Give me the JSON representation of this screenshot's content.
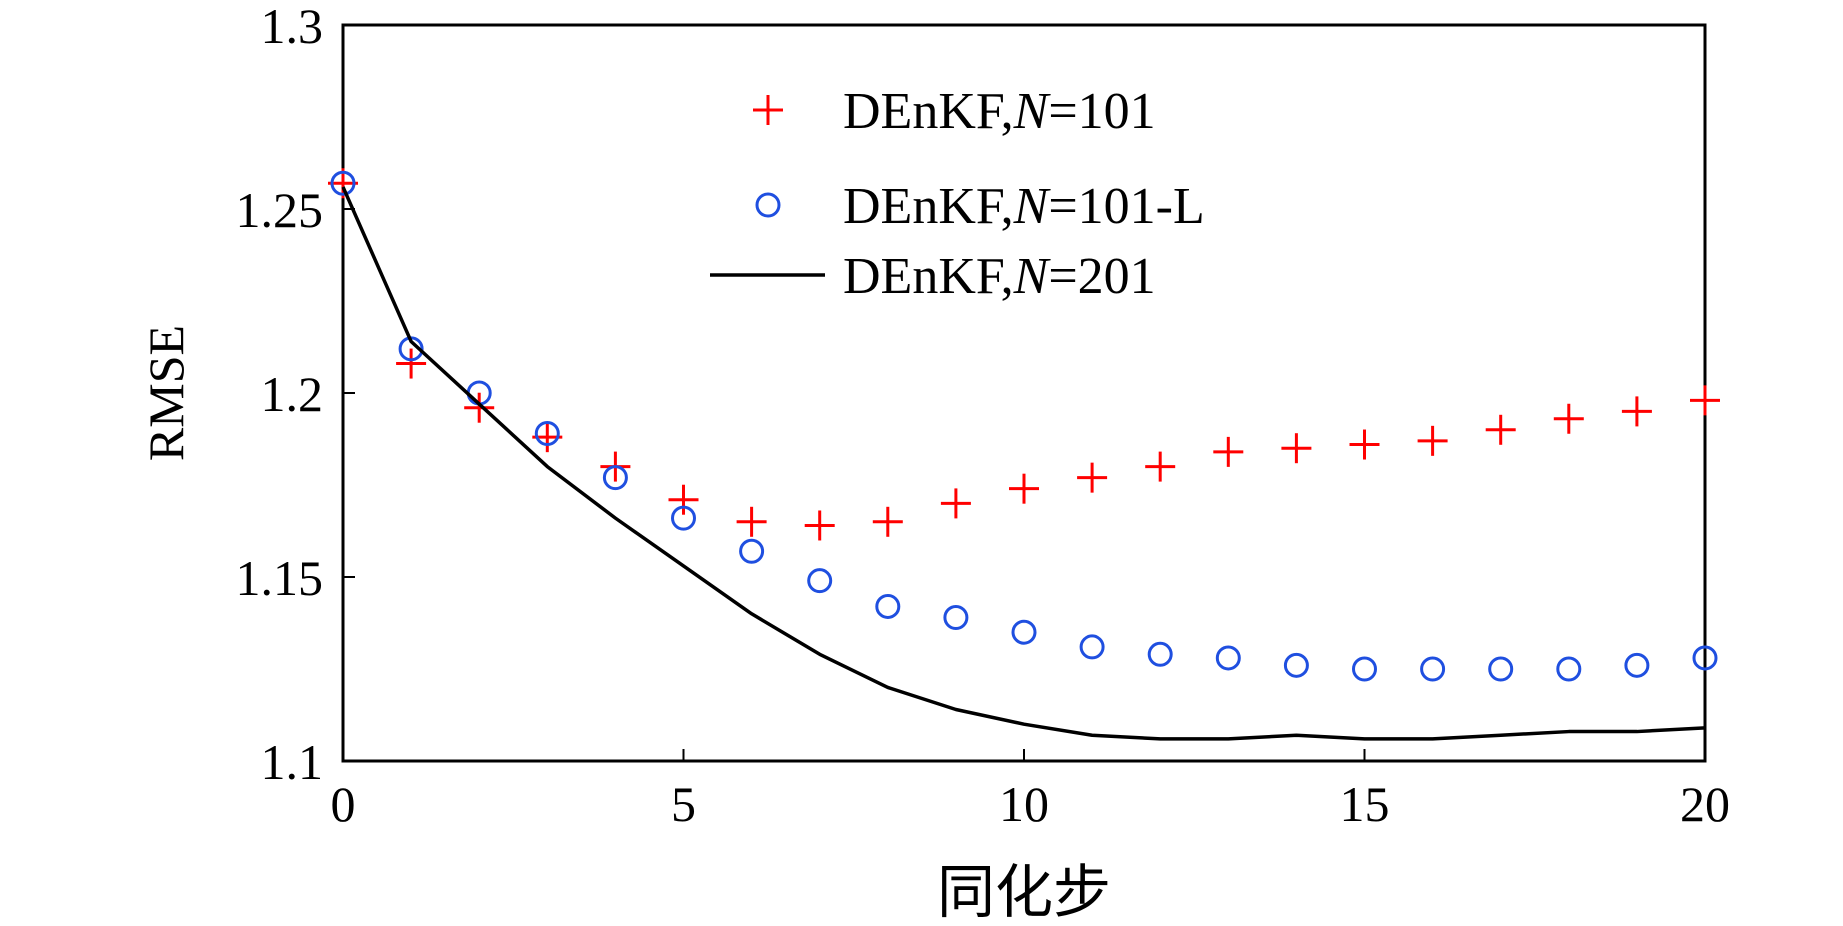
{
  "chart_data": {
    "type": "line",
    "title": "",
    "xlabel": "同化步",
    "ylabel": "RMSE",
    "xlim": [
      0,
      20
    ],
    "ylim": [
      1.1,
      1.3
    ],
    "xticks": [
      0,
      5,
      10,
      15,
      20
    ],
    "xtick_labels": [
      "0",
      "5",
      "10",
      "15",
      "20"
    ],
    "yticks": [
      1.1,
      1.15,
      1.2,
      1.25,
      1.3
    ],
    "ytick_labels": [
      "1.1",
      "1.15",
      "1.2",
      "1.25",
      "1.3"
    ],
    "grid": false,
    "legend_position": "top-center",
    "series": [
      {
        "name_prefix": "DEnKF,",
        "name_var": "N",
        "name_suffix": "=101",
        "style": "plus-markers",
        "color": "#ff0000",
        "x": [
          0,
          1,
          2,
          3,
          4,
          5,
          6,
          7,
          8,
          9,
          10,
          11,
          12,
          13,
          14,
          15,
          16,
          17,
          18,
          19,
          20
        ],
        "y": [
          1.257,
          1.208,
          1.196,
          1.188,
          1.18,
          1.171,
          1.165,
          1.164,
          1.165,
          1.17,
          1.174,
          1.177,
          1.18,
          1.184,
          1.185,
          1.186,
          1.187,
          1.19,
          1.193,
          1.195,
          1.198
        ]
      },
      {
        "name_prefix": "DEnKF,",
        "name_var": "N",
        "name_suffix": "=101-L",
        "style": "circle-markers",
        "color": "#1f4fe0",
        "x": [
          0,
          1,
          2,
          3,
          4,
          5,
          6,
          7,
          8,
          9,
          10,
          11,
          12,
          13,
          14,
          15,
          16,
          17,
          18,
          19,
          20
        ],
        "y": [
          1.257,
          1.212,
          1.2,
          1.189,
          1.177,
          1.166,
          1.157,
          1.149,
          1.142,
          1.139,
          1.135,
          1.131,
          1.129,
          1.128,
          1.126,
          1.125,
          1.125,
          1.125,
          1.125,
          1.126,
          1.128
        ]
      },
      {
        "name_prefix": "DEnKF,",
        "name_var": "N",
        "name_suffix": "=201",
        "style": "solid-line",
        "color": "#000000",
        "x": [
          0,
          1,
          2,
          3,
          4,
          5,
          6,
          7,
          8,
          9,
          10,
          11,
          12,
          13,
          14,
          15,
          16,
          17,
          18,
          19,
          20
        ],
        "y": [
          1.256,
          1.214,
          1.197,
          1.18,
          1.166,
          1.153,
          1.14,
          1.129,
          1.12,
          1.114,
          1.11,
          1.107,
          1.106,
          1.106,
          1.107,
          1.106,
          1.106,
          1.107,
          1.108,
          1.108,
          1.109
        ]
      }
    ]
  }
}
